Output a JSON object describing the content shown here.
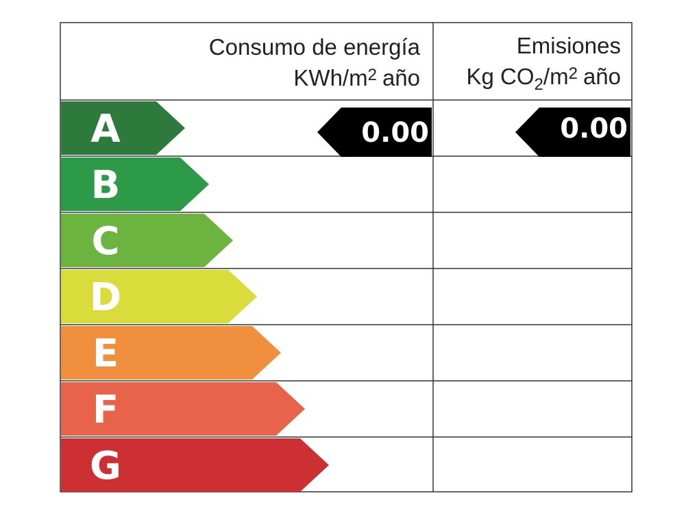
{
  "header": {
    "energy": {
      "title": "Consumo de energía",
      "unit_a": "KWh/m",
      "unit_sup": "2",
      "unit_b": "año"
    },
    "emissions": {
      "title": "Emisiones",
      "unit_a": "Kg CO",
      "unit_sub": "2",
      "unit_b": "/m",
      "unit_sup": "2",
      "unit_c": "año"
    }
  },
  "rows": [
    "A",
    "B",
    "C",
    "D",
    "E",
    "F",
    "G"
  ],
  "energy_value": "0.00",
  "emissions_value": "0.00"
}
